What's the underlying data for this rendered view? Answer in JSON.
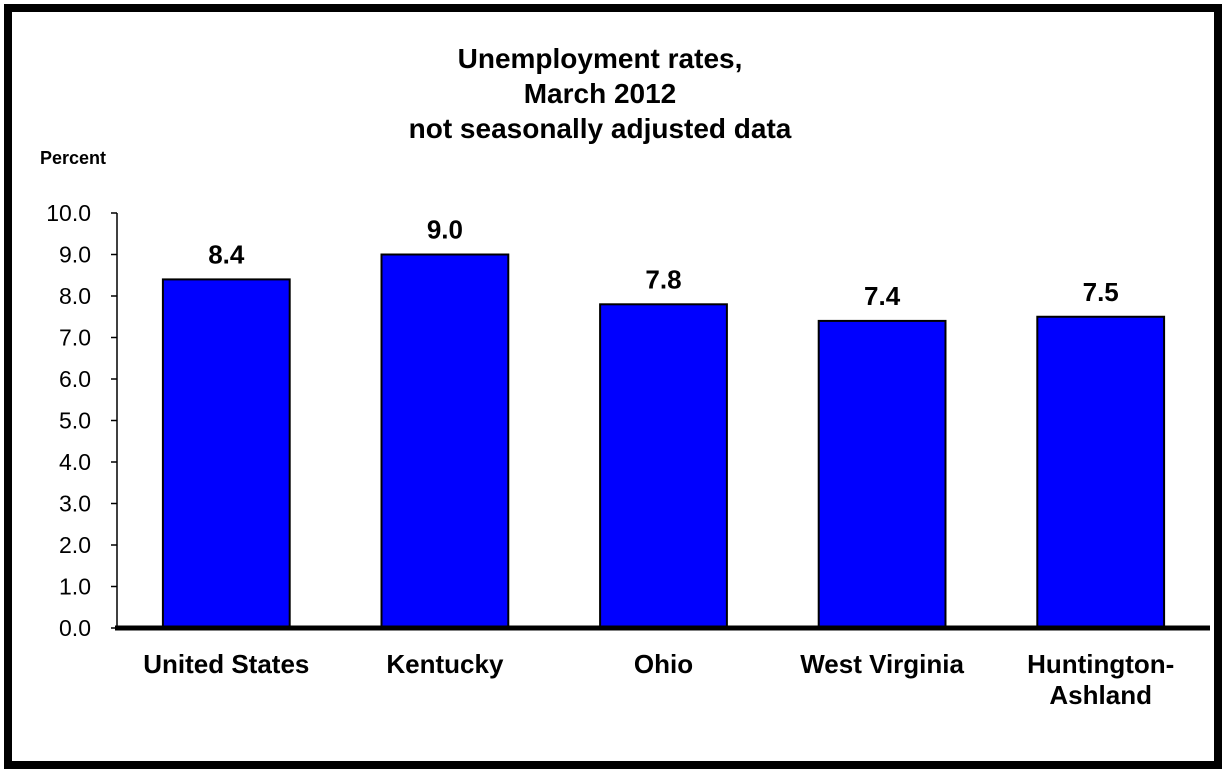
{
  "chart_data": {
    "type": "bar",
    "title_lines": [
      "Unemployment rates,",
      "March 2012",
      "not seasonally adjusted data"
    ],
    "ylabel": "Percent",
    "xlabel": "",
    "ylim": [
      0,
      10
    ],
    "ytick_values": [
      0,
      1,
      2,
      3,
      4,
      5,
      6,
      7,
      8,
      9,
      10
    ],
    "ytick_labels": [
      "0.0",
      "1.0",
      "2.0",
      "3.0",
      "4.0",
      "5.0",
      "6.0",
      "7.0",
      "8.0",
      "9.0",
      "10.0"
    ],
    "categories": [
      "United States",
      "Kentucky",
      "Ohio",
      "West Virginia",
      "Huntington-Ashland"
    ],
    "category_label_lines": [
      [
        "United States"
      ],
      [
        "Kentucky"
      ],
      [
        "Ohio"
      ],
      [
        "West Virginia"
      ],
      [
        "Huntington-",
        "Ashland"
      ]
    ],
    "values": [
      8.4,
      9.0,
      7.8,
      7.4,
      7.5
    ],
    "value_labels": [
      "8.4",
      "9.0",
      "7.8",
      "7.4",
      "7.5"
    ],
    "bar_color": "#0000FF",
    "bar_edge_color": "#000000",
    "grid": false,
    "legend": "none"
  }
}
